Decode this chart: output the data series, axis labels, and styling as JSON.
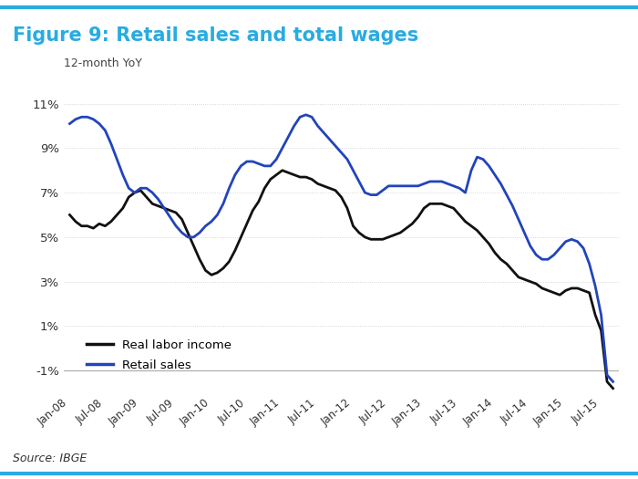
{
  "title": "Figure 9: Retail sales and total wages",
  "title_color": "#29ABE2",
  "subtitle": "12-month YoY",
  "source": "Source: IBGE",
  "ylim": [
    -2,
    12
  ],
  "yticks": [
    -1,
    1,
    3,
    5,
    7,
    9,
    11
  ],
  "ytick_labels": [
    "-1%",
    "1%",
    "3%",
    "5%",
    "7%",
    "9%",
    "11%"
  ],
  "background_color": "#ffffff",
  "border_color": "#29ABE2",
  "real_labor_income_color": "#111111",
  "retail_sales_color": "#2244BB",
  "real_labor_income_values": [
    6.0,
    5.7,
    5.5,
    5.5,
    5.4,
    5.6,
    5.5,
    5.7,
    6.0,
    6.3,
    6.8,
    7.0,
    7.1,
    6.8,
    6.5,
    6.4,
    6.3,
    6.2,
    6.1,
    5.8,
    5.2,
    4.6,
    4.0,
    3.5,
    3.3,
    3.4,
    3.6,
    3.9,
    4.4,
    5.0,
    5.6,
    6.2,
    6.6,
    7.2,
    7.6,
    7.8,
    8.0,
    7.9,
    7.8,
    7.7,
    7.7,
    7.6,
    7.4,
    7.3,
    7.2,
    7.1,
    6.8,
    6.3,
    5.5,
    5.2,
    5.0,
    4.9,
    4.9,
    4.9,
    5.0,
    5.1,
    5.2,
    5.4,
    5.6,
    5.9,
    6.3,
    6.5,
    6.5,
    6.5,
    6.4,
    6.3,
    6.0,
    5.7,
    5.5,
    5.3,
    5.0,
    4.7,
    4.3,
    4.0,
    3.8,
    3.5,
    3.2,
    3.1,
    3.0,
    2.9,
    2.7,
    2.6,
    2.5,
    2.4,
    2.6,
    2.7,
    2.7,
    2.6,
    2.5,
    1.5,
    0.8,
    -1.5,
    -1.8
  ],
  "retail_sales_values": [
    10.1,
    10.3,
    10.4,
    10.4,
    10.3,
    10.1,
    9.8,
    9.2,
    8.5,
    7.8,
    7.2,
    7.0,
    7.2,
    7.2,
    7.0,
    6.7,
    6.3,
    5.9,
    5.5,
    5.2,
    5.0,
    5.0,
    5.2,
    5.5,
    5.7,
    6.0,
    6.5,
    7.2,
    7.8,
    8.2,
    8.4,
    8.4,
    8.3,
    8.2,
    8.2,
    8.5,
    9.0,
    9.5,
    10.0,
    10.4,
    10.5,
    10.4,
    10.0,
    9.7,
    9.4,
    9.1,
    8.8,
    8.5,
    8.0,
    7.5,
    7.0,
    6.9,
    6.9,
    7.1,
    7.3,
    7.3,
    7.3,
    7.3,
    7.3,
    7.3,
    7.4,
    7.5,
    7.5,
    7.5,
    7.4,
    7.3,
    7.2,
    7.0,
    8.0,
    8.6,
    8.5,
    8.2,
    7.8,
    7.4,
    6.9,
    6.4,
    5.8,
    5.2,
    4.6,
    4.2,
    4.0,
    4.0,
    4.2,
    4.5,
    4.8,
    4.9,
    4.8,
    4.5,
    3.8,
    2.8,
    1.5,
    -1.2,
    -1.5
  ],
  "xtick_positions": [
    0,
    6,
    12,
    18,
    24,
    30,
    36,
    42,
    48,
    54,
    60,
    66,
    72,
    78,
    84,
    90
  ],
  "xtick_labels": [
    "Jan-08",
    "Jul-08",
    "Jan-09",
    "Jul-09",
    "Jan-10",
    "Jul-10",
    "Jan-11",
    "Jul-11",
    "Jan-12",
    "Jul-12",
    "Jan-13",
    "Jul-13",
    "Jan-14",
    "Jul-14",
    "Jan-15",
    "Jul-15"
  ],
  "legend_labels": [
    "Real labor income",
    "Retail sales"
  ],
  "legend_colors": [
    "#111111",
    "#2244BB"
  ]
}
